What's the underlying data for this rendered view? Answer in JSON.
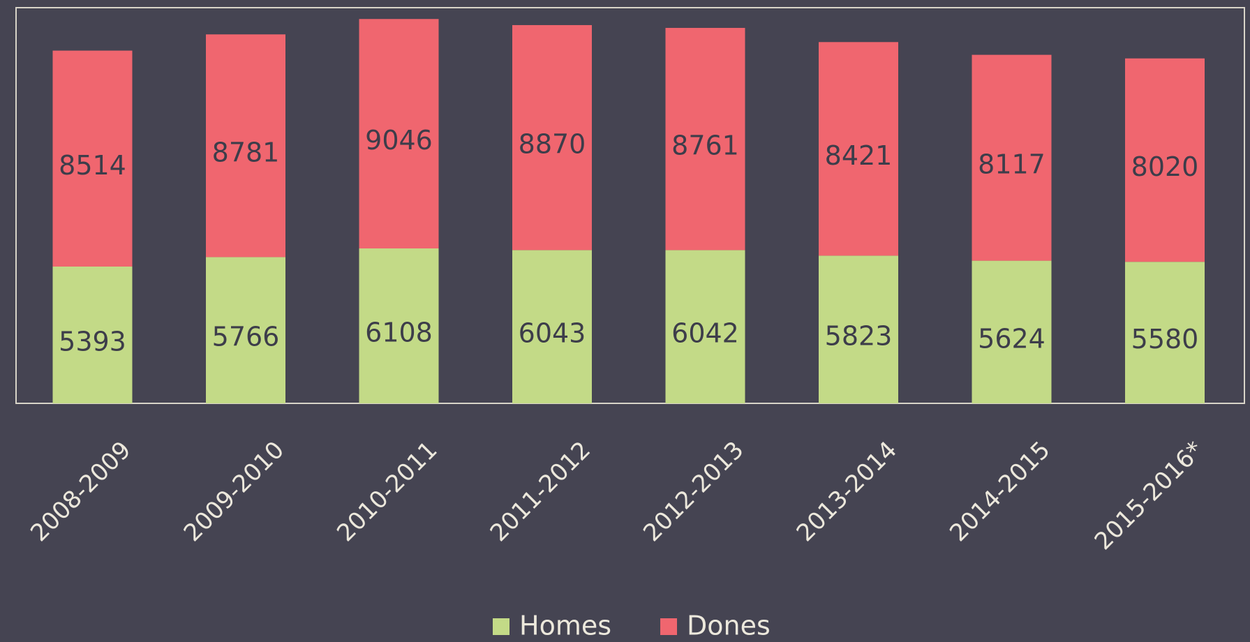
{
  "chart_data": {
    "type": "stacked_bar",
    "categories": [
      "2008-2009",
      "2009-2010",
      "2010-2011",
      "2011-2012",
      "2012-2013",
      "2013-2014",
      "2014-2015",
      "2015-2016*"
    ],
    "series": [
      {
        "name": "Homes",
        "color": "#c3da87",
        "values": [
          5393,
          5766,
          6108,
          6043,
          6042,
          5823,
          5624,
          5580
        ]
      },
      {
        "name": "Dones",
        "color": "#f0666f",
        "values": [
          8514,
          8781,
          9046,
          8870,
          8761,
          8421,
          8117,
          8020
        ]
      }
    ],
    "ylim": [
      0,
      15600
    ],
    "legend": "bottom"
  }
}
